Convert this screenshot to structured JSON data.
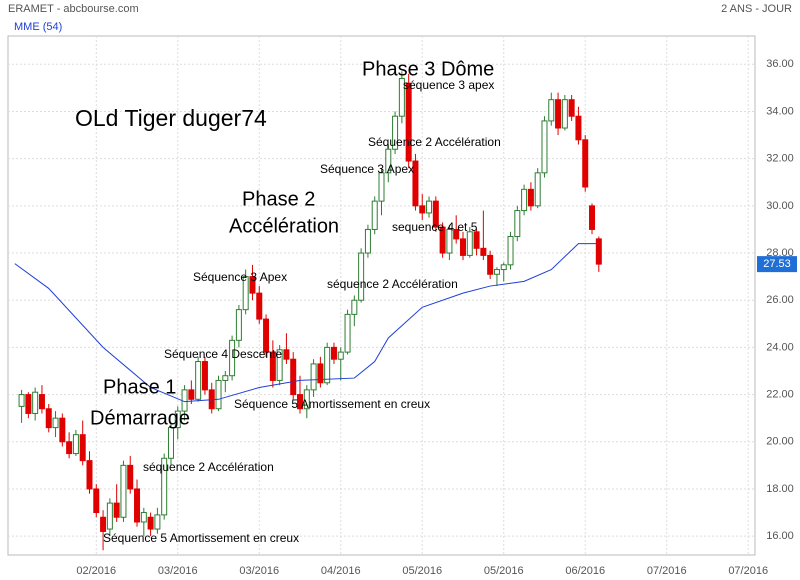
{
  "chart_data": {
    "type": "candlestick",
    "title": "ERAMET - abcbourse.com",
    "period": "2 ANS - JOUR",
    "indicator_name": "MME (54)",
    "annotations": [
      "Phase 3 Dôme",
      "séquence 3 apex",
      "OLd Tiger duger74",
      "Séquence 2 Accélération",
      "Séquence 3 Apex",
      "Phase 2",
      "Accélération",
      "sequence 4 et 5",
      "Séquence 3 Apex",
      "séquence 2 Accélération",
      "Séquence 4 Descente",
      "Phase 1",
      "Démarrage",
      "Séquence 5 Amortissement en creux",
      "séquence 2 Accélération",
      "Séquence 5 Amortissement en creux"
    ],
    "x": [
      0,
      1,
      2,
      3,
      4,
      5,
      6,
      7,
      8,
      9,
      10,
      11,
      12,
      13,
      14,
      15,
      16,
      17,
      18,
      19,
      20,
      21,
      22,
      23,
      24,
      25,
      26,
      27,
      28,
      29,
      30,
      31,
      32,
      33,
      34,
      35,
      36,
      37,
      38,
      39,
      40,
      41,
      42,
      43,
      44,
      45,
      46,
      47,
      48,
      49,
      50,
      51,
      52,
      53,
      54,
      55,
      56,
      57,
      58,
      59,
      60,
      61,
      62,
      63,
      64,
      65,
      66,
      67,
      68,
      69,
      70,
      71,
      72,
      73,
      74,
      75,
      76,
      77,
      78,
      79,
      80,
      81,
      82,
      83,
      84,
      85
    ],
    "open": [
      21.5,
      22.0,
      21.2,
      22.0,
      21.4,
      20.6,
      21.0,
      20.0,
      19.5,
      20.3,
      19.2,
      18.0,
      16.8,
      16.3,
      17.4,
      16.8,
      19.0,
      18.0,
      16.6,
      16.8,
      16.3,
      16.9,
      19.3,
      20.6,
      21.3,
      22.2,
      21.8,
      23.4,
      22.2,
      21.4,
      22.6,
      22.8,
      24.3,
      25.6,
      27.0,
      26.3,
      25.2,
      23.8,
      22.6,
      23.9,
      23.5,
      22.0,
      21.4,
      22.2,
      23.3,
      22.5,
      24.0,
      23.5,
      23.8,
      25.4,
      26.0,
      28.0,
      29.0,
      30.2,
      31.4,
      32.4,
      33.8,
      35.2,
      31.9,
      30.0,
      29.7,
      30.2,
      29.1,
      28.0,
      29.0,
      28.6,
      27.9,
      28.9,
      28.2,
      27.9,
      27.1,
      27.3,
      27.5,
      28.7,
      29.8,
      30.7,
      30.0,
      31.4,
      33.6,
      34.5,
      33.3,
      34.5,
      33.8,
      32.8,
      30.0,
      28.6
    ],
    "high": [
      22.2,
      22.1,
      22.3,
      22.4,
      21.6,
      21.3,
      21.2,
      20.4,
      20.5,
      20.9,
      19.6,
      18.2,
      17.1,
      17.6,
      18.2,
      19.2,
      19.4,
      18.4,
      17.2,
      17.0,
      17.2,
      19.5,
      20.8,
      21.5,
      22.4,
      22.6,
      23.6,
      23.6,
      22.5,
      22.8,
      23.0,
      24.5,
      25.8,
      27.3,
      27.5,
      26.6,
      25.4,
      24.3,
      24.1,
      24.6,
      23.8,
      22.8,
      22.4,
      23.5,
      23.6,
      24.2,
      24.2,
      24.0,
      25.6,
      26.2,
      28.2,
      29.2,
      30.4,
      31.6,
      32.6,
      34.0,
      35.7,
      35.6,
      32.2,
      30.5,
      30.4,
      30.4,
      29.3,
      29.2,
      29.6,
      28.9,
      29.1,
      29.0,
      29.8,
      28.1,
      27.4,
      27.6,
      28.9,
      30.0,
      30.9,
      31.0,
      31.6,
      33.8,
      34.8,
      34.8,
      34.7,
      34.7,
      34.2,
      33.0,
      30.1,
      28.7
    ],
    "low": [
      20.8,
      21.0,
      20.9,
      21.2,
      20.4,
      20.2,
      19.8,
      19.3,
      19.4,
      19.0,
      17.8,
      16.8,
      15.4,
      16.0,
      16.6,
      16.6,
      17.8,
      16.4,
      16.0,
      16.0,
      16.1,
      16.7,
      19.0,
      20.1,
      20.9,
      21.6,
      21.7,
      22.0,
      21.2,
      21.3,
      22.1,
      22.6,
      24.0,
      25.4,
      26.0,
      25.0,
      23.6,
      22.3,
      22.4,
      23.3,
      21.8,
      21.2,
      21.0,
      21.9,
      22.3,
      22.4,
      23.3,
      22.6,
      23.7,
      24.9,
      25.9,
      27.8,
      28.8,
      29.6,
      31.0,
      32.2,
      33.5,
      31.6,
      29.8,
      29.4,
      29.5,
      28.9,
      27.8,
      27.7,
      28.4,
      27.7,
      27.8,
      27.9,
      27.7,
      26.9,
      26.6,
      26.8,
      27.3,
      28.5,
      29.6,
      29.8,
      29.9,
      31.2,
      33.4,
      33.0,
      33.2,
      33.6,
      32.6,
      30.6,
      28.8,
      27.2
    ],
    "close": [
      22.0,
      21.2,
      22.1,
      21.4,
      20.6,
      21.0,
      20.0,
      19.5,
      20.3,
      19.2,
      18.0,
      17.0,
      16.2,
      17.4,
      16.8,
      19.0,
      18.0,
      16.6,
      17.0,
      16.3,
      16.9,
      19.3,
      20.6,
      21.3,
      22.2,
      21.8,
      23.4,
      22.2,
      21.4,
      22.6,
      22.8,
      24.3,
      25.6,
      27.0,
      26.3,
      25.2,
      23.8,
      22.6,
      23.9,
      23.5,
      22.0,
      21.4,
      22.2,
      23.3,
      22.5,
      24.0,
      23.5,
      23.8,
      25.4,
      26.0,
      28.0,
      29.0,
      30.2,
      31.4,
      32.4,
      33.8,
      35.4,
      31.9,
      30.0,
      29.7,
      30.2,
      29.1,
      28.0,
      29.0,
      28.6,
      27.9,
      28.9,
      28.2,
      27.9,
      27.1,
      27.3,
      27.5,
      28.7,
      29.8,
      30.7,
      30.0,
      31.4,
      33.6,
      34.5,
      33.3,
      34.5,
      33.8,
      32.8,
      30.8,
      29.0,
      27.53
    ],
    "up_color": "#2e7d32",
    "down_color": "#e00000",
    "indicator": {
      "color": "#1f3fd6",
      "x": [
        -1,
        4,
        12,
        19,
        24,
        29,
        35,
        41,
        49,
        52,
        54,
        59,
        65,
        69,
        74,
        78,
        82,
        85
      ],
      "values": [
        27.55,
        26.5,
        24.0,
        22.3,
        21.7,
        21.8,
        22.3,
        22.6,
        22.7,
        23.4,
        24.4,
        25.7,
        26.3,
        26.6,
        26.8,
        27.3,
        28.4,
        28.4
      ]
    },
    "xlim": [
      -2,
      108
    ],
    "xticks": [
      {
        "value": 11,
        "label": "02/2016"
      },
      {
        "value": 23,
        "label": "03/2016"
      },
      {
        "value": 35,
        "label": "03/2016"
      },
      {
        "value": 47,
        "label": "04/2016"
      },
      {
        "value": 59,
        "label": "05/2016"
      },
      {
        "value": 71,
        "label": "05/2016"
      },
      {
        "value": 83,
        "label": "06/2016"
      },
      {
        "value": 95,
        "label": "07/2016"
      },
      {
        "value": 107,
        "label": "07/2016"
      }
    ],
    "ylim": [
      15.2,
      37.2
    ],
    "yticks": [
      {
        "value": 16,
        "label": "16.00"
      },
      {
        "value": 18,
        "label": "18.00"
      },
      {
        "value": 20,
        "label": "20.00"
      },
      {
        "value": 22,
        "label": "22.00"
      },
      {
        "value": 24,
        "label": "24.00"
      },
      {
        "value": 26,
        "label": "26.00"
      },
      {
        "value": 28,
        "label": "28.00"
      },
      {
        "value": 30,
        "label": "30.00"
      },
      {
        "value": 32,
        "label": "32.00"
      },
      {
        "value": 34,
        "label": "34.00"
      },
      {
        "value": 36,
        "label": "36.00"
      }
    ],
    "grid": true
  }
}
